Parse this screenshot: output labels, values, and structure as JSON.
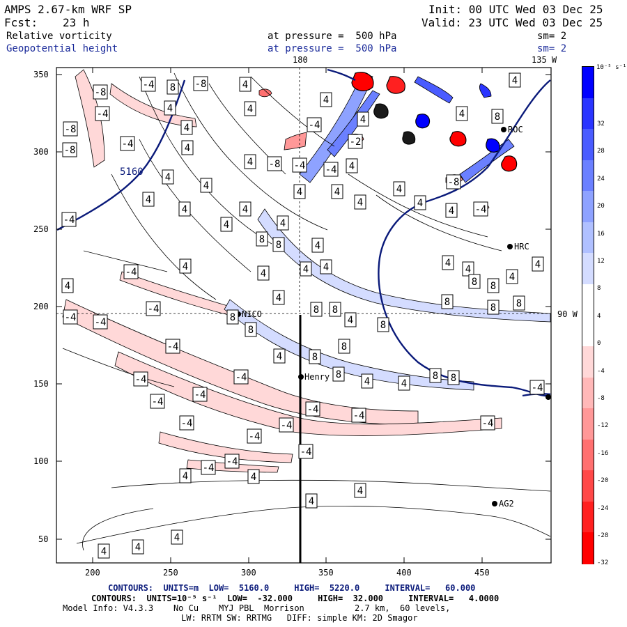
{
  "header": {
    "model": "AMPS 2.67-km WRF SP",
    "init": "Init: 00 UTC Wed 03 Dec 25",
    "fcst_label": "Fcst:",
    "fcst_value": "23 h",
    "valid": "Valid: 23 UTC Wed 03 Dec 25",
    "field1": "Relative vorticity",
    "field1_level": "at pressure =  500 hPa",
    "field1_sm": "sm= 2",
    "field2": "Geopotential height",
    "field2_level": "at pressure =  500 hPa",
    "field2_sm": "sm= 2"
  },
  "map": {
    "meridian_180": "180",
    "meridian_135w": "135 W",
    "lat_90w": "90 W",
    "x_ticks": [
      "200",
      "250",
      "300",
      "350",
      "400",
      "450"
    ],
    "y_ticks": [
      "50",
      "100",
      "150",
      "200",
      "250",
      "300",
      "350"
    ],
    "height_label": "5160",
    "stations": {
      "nico": "NICO",
      "henry": "Henry",
      "hrc": "HRC",
      "roc": "ROC",
      "ag2": "AG2"
    },
    "contour_labels": {
      "neg4": "-4",
      "pos4": "4",
      "neg8": "-8",
      "pos8": "8"
    }
  },
  "colorbar": {
    "unit": "10⁻⁵ s⁻¹",
    "ticks": [
      "32",
      "28",
      "24",
      "20",
      "16",
      "12",
      "8",
      "4",
      "0",
      "-4",
      "-8",
      "-12",
      "-16",
      "-20",
      "-24",
      "-28",
      "-32"
    ],
    "colors": {
      "pos": [
        "#0000ff",
        "#2a35ff",
        "#4a5cff",
        "#6b80ff",
        "#8ea2ff",
        "#b0c0ff",
        "#d4dcff",
        "#ffffff"
      ],
      "neg": [
        "#ffffff",
        "#ffd8d8",
        "#ffb8b8",
        "#ff9898",
        "#ff7070",
        "#ff4848",
        "#ff2020",
        "#ff0000"
      ]
    }
  },
  "footer": {
    "line1": "CONTOURS:  UNITS=m  LOW=  5160.0     HIGH=  5220.0     INTERVAL=   60.000",
    "line2": "CONTOURS:  UNITS=10⁻⁵ s⁻¹  LOW=  -32.000     HIGH=  32.000     INTERVAL=   4.0000",
    "line3": "Model Info: V4.3.3    No Cu    MYJ PBL  Morrison          2.7 km,  60 levels,",
    "line4": "LW: RRTM SW: RRTMG   DIFF: simple KM: 2D Smagor"
  }
}
